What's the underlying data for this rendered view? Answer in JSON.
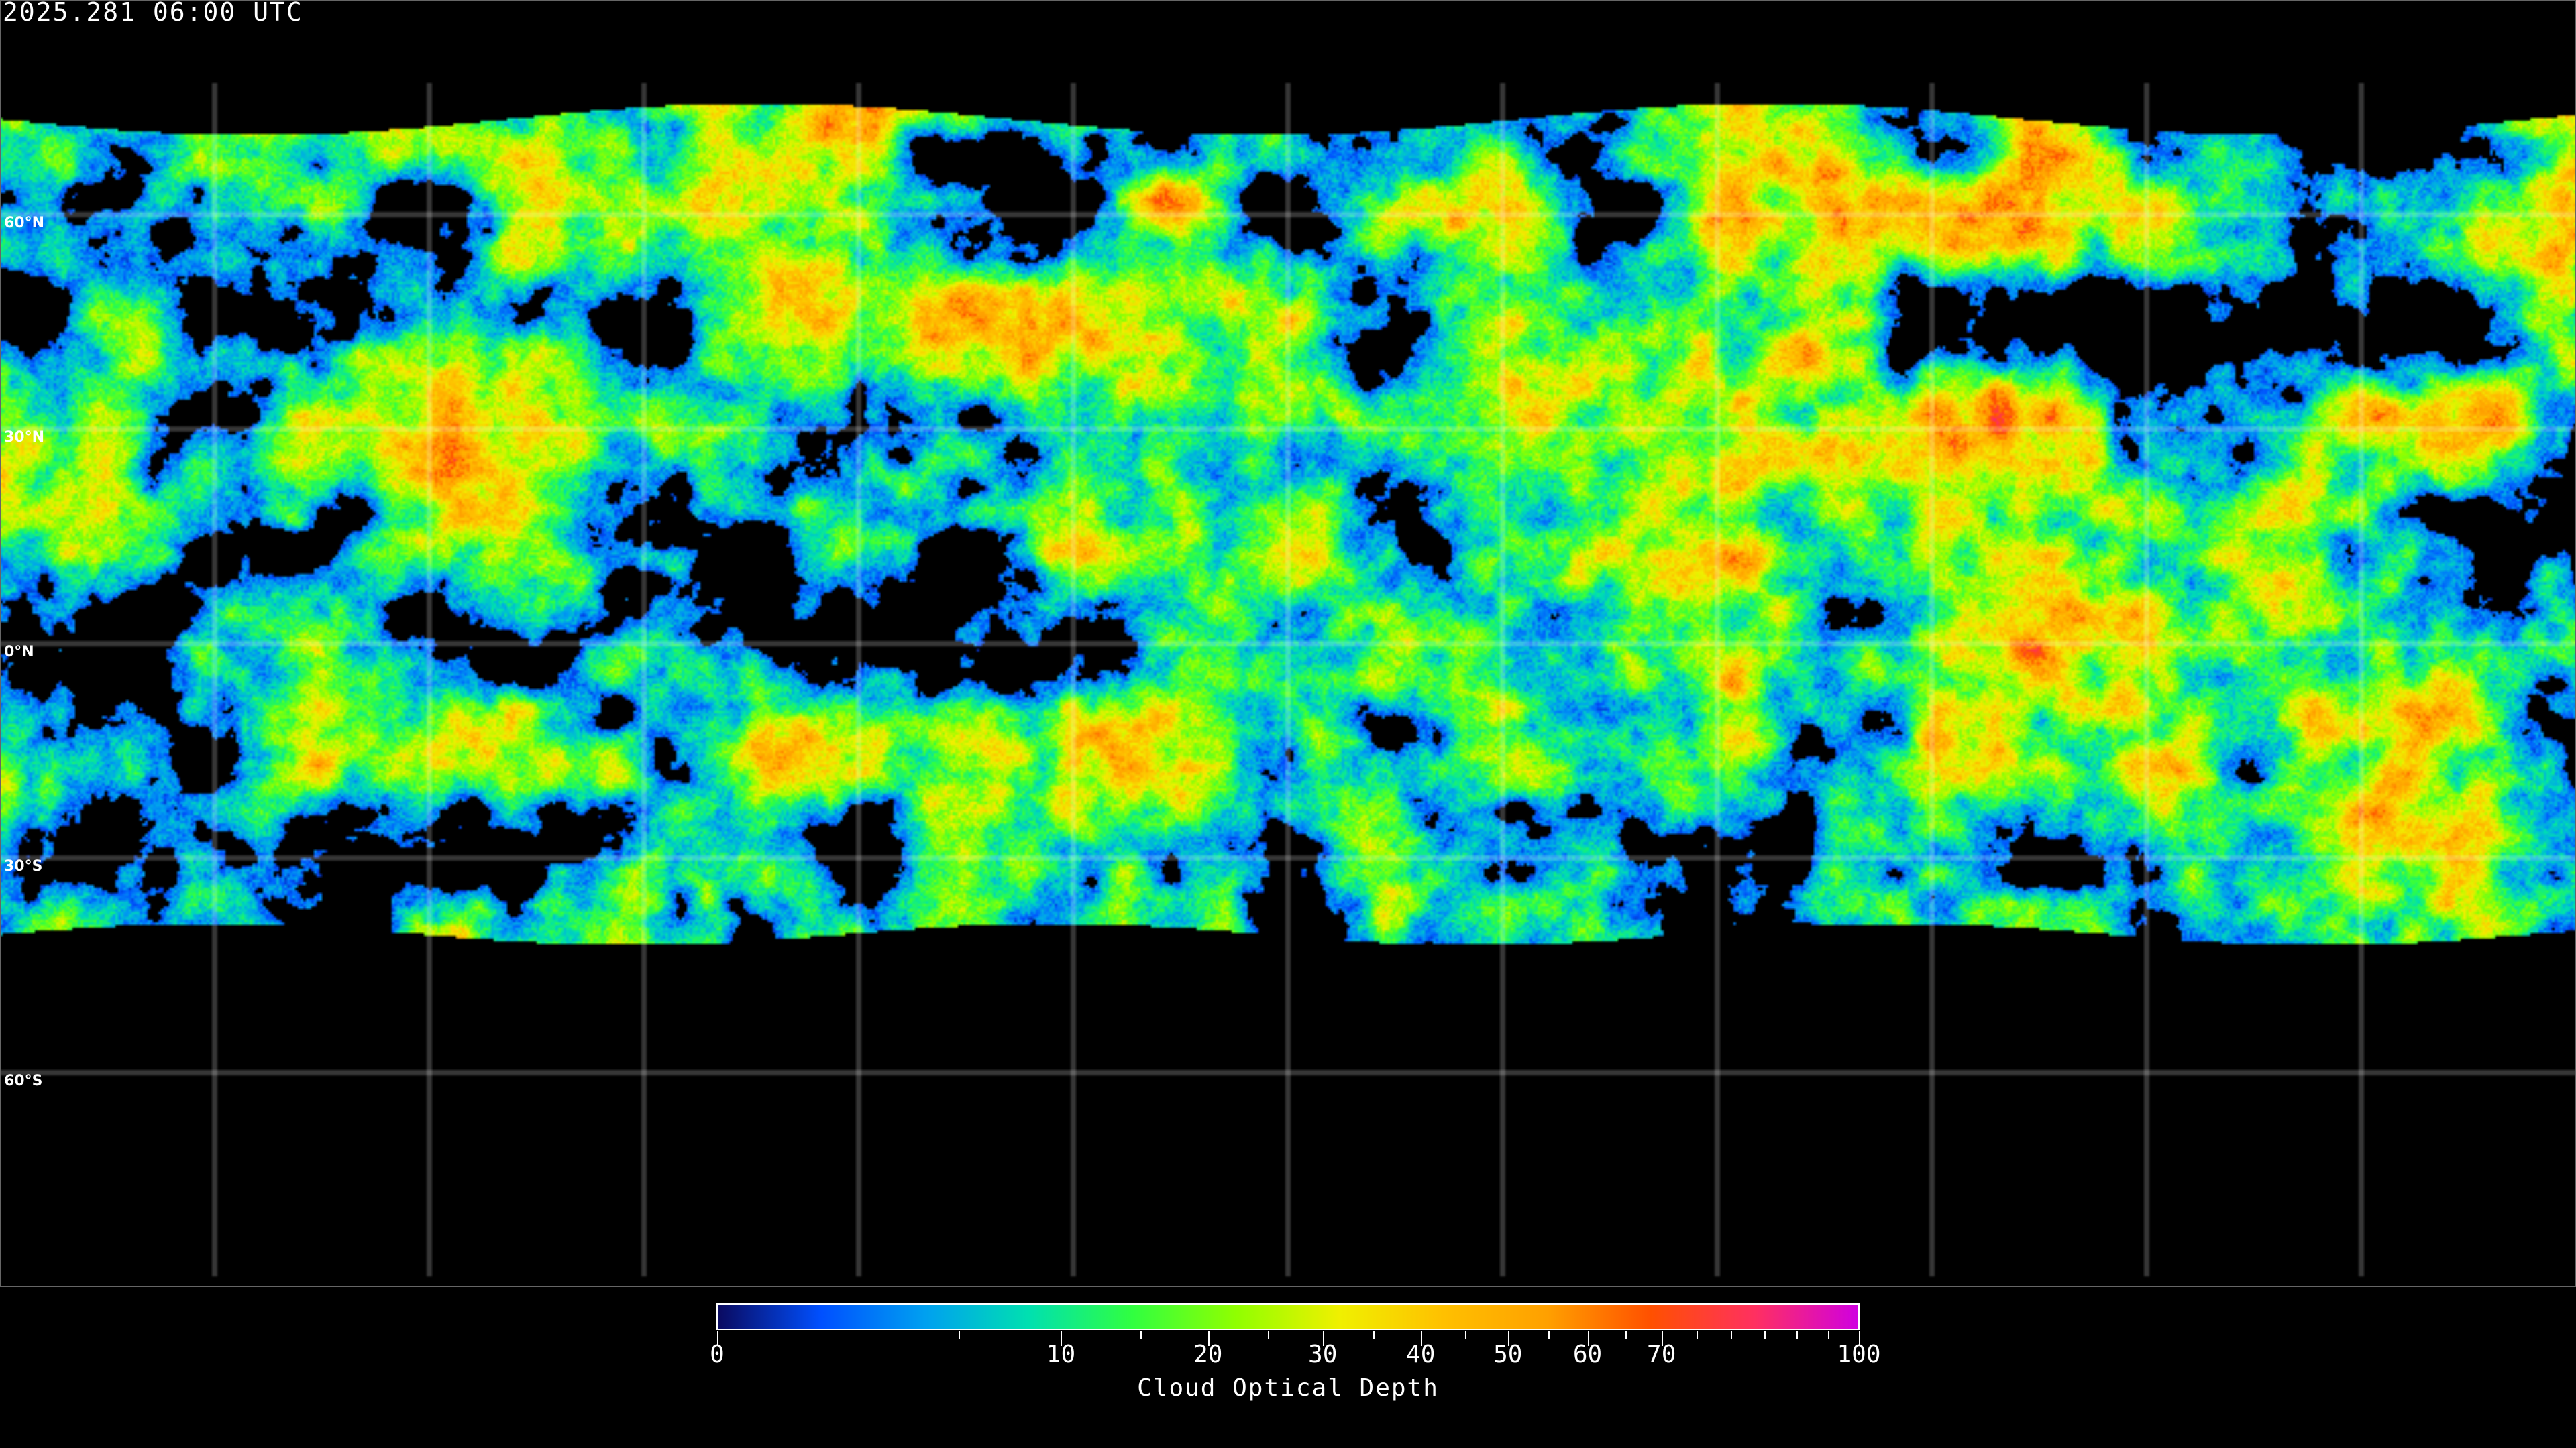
{
  "title": "2025.281 06:00 UTC",
  "latitude_labels": [
    "60°N",
    "30°N",
    "0°N",
    "30°S",
    "60°S"
  ],
  "colorbar": {
    "label": "Cloud Optical Depth",
    "range": [
      0,
      100
    ],
    "ticks": [
      "0",
      "10",
      "20",
      "30",
      "40",
      "50",
      "60",
      "70",
      "100"
    ],
    "colors": [
      "#0a0a60",
      "#0050ff",
      "#00a0f0",
      "#00e0b0",
      "#30ff40",
      "#90ff00",
      "#f0f000",
      "#ffc000",
      "#ffa000",
      "#ff5000",
      "#ff3060",
      "#d000e0"
    ]
  },
  "map": {
    "projection": "equirectangular",
    "grid_spacing_deg": 30,
    "background": "#000000",
    "coastline_color": "#ffffff"
  }
}
